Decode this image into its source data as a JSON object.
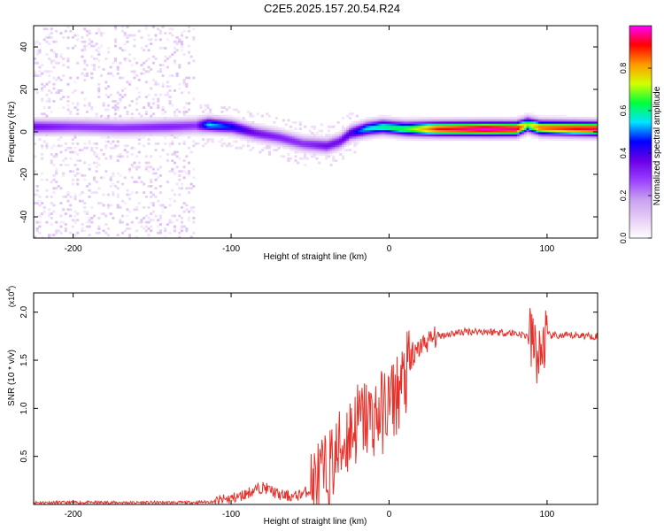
{
  "title": "C2E5.2025.157.20.54.R24",
  "colors": {
    "snr_line": "#e8302a",
    "colormap": [
      "#ffffff",
      "#e6cdf5",
      "#c8a0f0",
      "#9a40ff",
      "#6a00e6",
      "#0000ff",
      "#00e5ff",
      "#00ff3c",
      "#d4ff00",
      "#ff9800",
      "#ff0000",
      "#ff00ff"
    ]
  },
  "chart_data": [
    {
      "type": "heatmap",
      "xlabel": "Height of straight line (km)",
      "ylabel": "Frequency (Hz)",
      "xlim": [
        -225,
        132
      ],
      "ylim": [
        -50,
        50
      ],
      "x_ticks": [
        -200,
        -100,
        0,
        100
      ],
      "x_tick_labels": [
        "-200",
        "-100",
        "0",
        "100"
      ],
      "y_ticks": [
        -40,
        -20,
        0,
        20,
        40
      ],
      "y_tick_labels": [
        "-40",
        "-20",
        "0",
        "20",
        "40"
      ],
      "colorbar": {
        "label": "Normalized spectral amplitude",
        "range": [
          0,
          1
        ],
        "ticks": [
          0,
          0.2,
          0.4,
          0.6,
          0.8
        ],
        "tick_labels": [
          "0.0",
          "0.2",
          "0.4",
          "0.6",
          "0.8"
        ]
      },
      "ridge": [
        {
          "x": -225,
          "f": 2,
          "amp": 0.35
        },
        {
          "x": -200,
          "f": 2,
          "amp": 0.3
        },
        {
          "x": -170,
          "f": 1.5,
          "amp": 0.3
        },
        {
          "x": -140,
          "f": 2,
          "amp": 0.32
        },
        {
          "x": -123,
          "f": 2.5,
          "amp": 0.3
        },
        {
          "x": -115,
          "f": 3,
          "amp": 0.55
        },
        {
          "x": -100,
          "f": 2,
          "amp": 0.45
        },
        {
          "x": -85,
          "f": -1,
          "amp": 0.35
        },
        {
          "x": -70,
          "f": -3,
          "amp": 0.32
        },
        {
          "x": -55,
          "f": -6,
          "amp": 0.3
        },
        {
          "x": -40,
          "f": -7,
          "amp": 0.35
        },
        {
          "x": -32,
          "f": -5,
          "amp": 0.35
        },
        {
          "x": -25,
          "f": -1,
          "amp": 0.4
        },
        {
          "x": -15,
          "f": 1,
          "amp": 0.55
        },
        {
          "x": -5,
          "f": 2,
          "amp": 0.6
        },
        {
          "x": 10,
          "f": 1,
          "amp": 0.65
        },
        {
          "x": 30,
          "f": 1,
          "amp": 0.9
        },
        {
          "x": 60,
          "f": 1,
          "amp": 1.0
        },
        {
          "x": 80,
          "f": 1,
          "amp": 0.95
        },
        {
          "x": 87,
          "f": 3,
          "amp": 0.7
        },
        {
          "x": 95,
          "f": 1.5,
          "amp": 0.85
        },
        {
          "x": 132,
          "f": 1,
          "amp": 0.95
        }
      ]
    },
    {
      "type": "line",
      "xlabel": "Height of straight line (km)",
      "ylabel": "SNR (10 * v/v)",
      "y_multiplier": "(x10",
      "y_multiplier_exp": "4",
      "y_multiplier_close": ")",
      "xlim": [
        -225,
        132
      ],
      "ylim": [
        0,
        2.2
      ],
      "x_ticks": [
        -200,
        -100,
        0,
        100
      ],
      "x_tick_labels": [
        "-200",
        "-100",
        "0",
        "100"
      ],
      "y_ticks": [
        0.5,
        1.0,
        1.5,
        2.0
      ],
      "y_tick_labels": [
        "0.5",
        "1.0",
        "1.5",
        "2.0"
      ],
      "series": [
        {
          "x": [
            -225,
            -200,
            -175,
            -150,
            -125,
            -110,
            -95,
            -85,
            -80,
            -75,
            -70,
            -60,
            -50,
            -45,
            -40,
            -35,
            -30,
            -25,
            -20,
            -15,
            -10,
            -5,
            0,
            5,
            10,
            15,
            20,
            25,
            30,
            40,
            50,
            60,
            70,
            80,
            88,
            92,
            95,
            98,
            100,
            110,
            120,
            132
          ],
          "y": [
            0.02,
            0.02,
            0.02,
            0.02,
            0.02,
            0.03,
            0.08,
            0.15,
            0.18,
            0.15,
            0.1,
            0.08,
            0.15,
            0.25,
            0.3,
            0.45,
            0.6,
            0.75,
            0.85,
            0.9,
            0.9,
            0.95,
            1.05,
            1.15,
            1.3,
            1.5,
            1.65,
            1.7,
            1.75,
            1.78,
            1.8,
            1.8,
            1.79,
            1.78,
            1.75,
            1.65,
            1.5,
            1.7,
            1.76,
            1.75,
            1.76,
            1.75
          ]
        }
      ]
    }
  ]
}
